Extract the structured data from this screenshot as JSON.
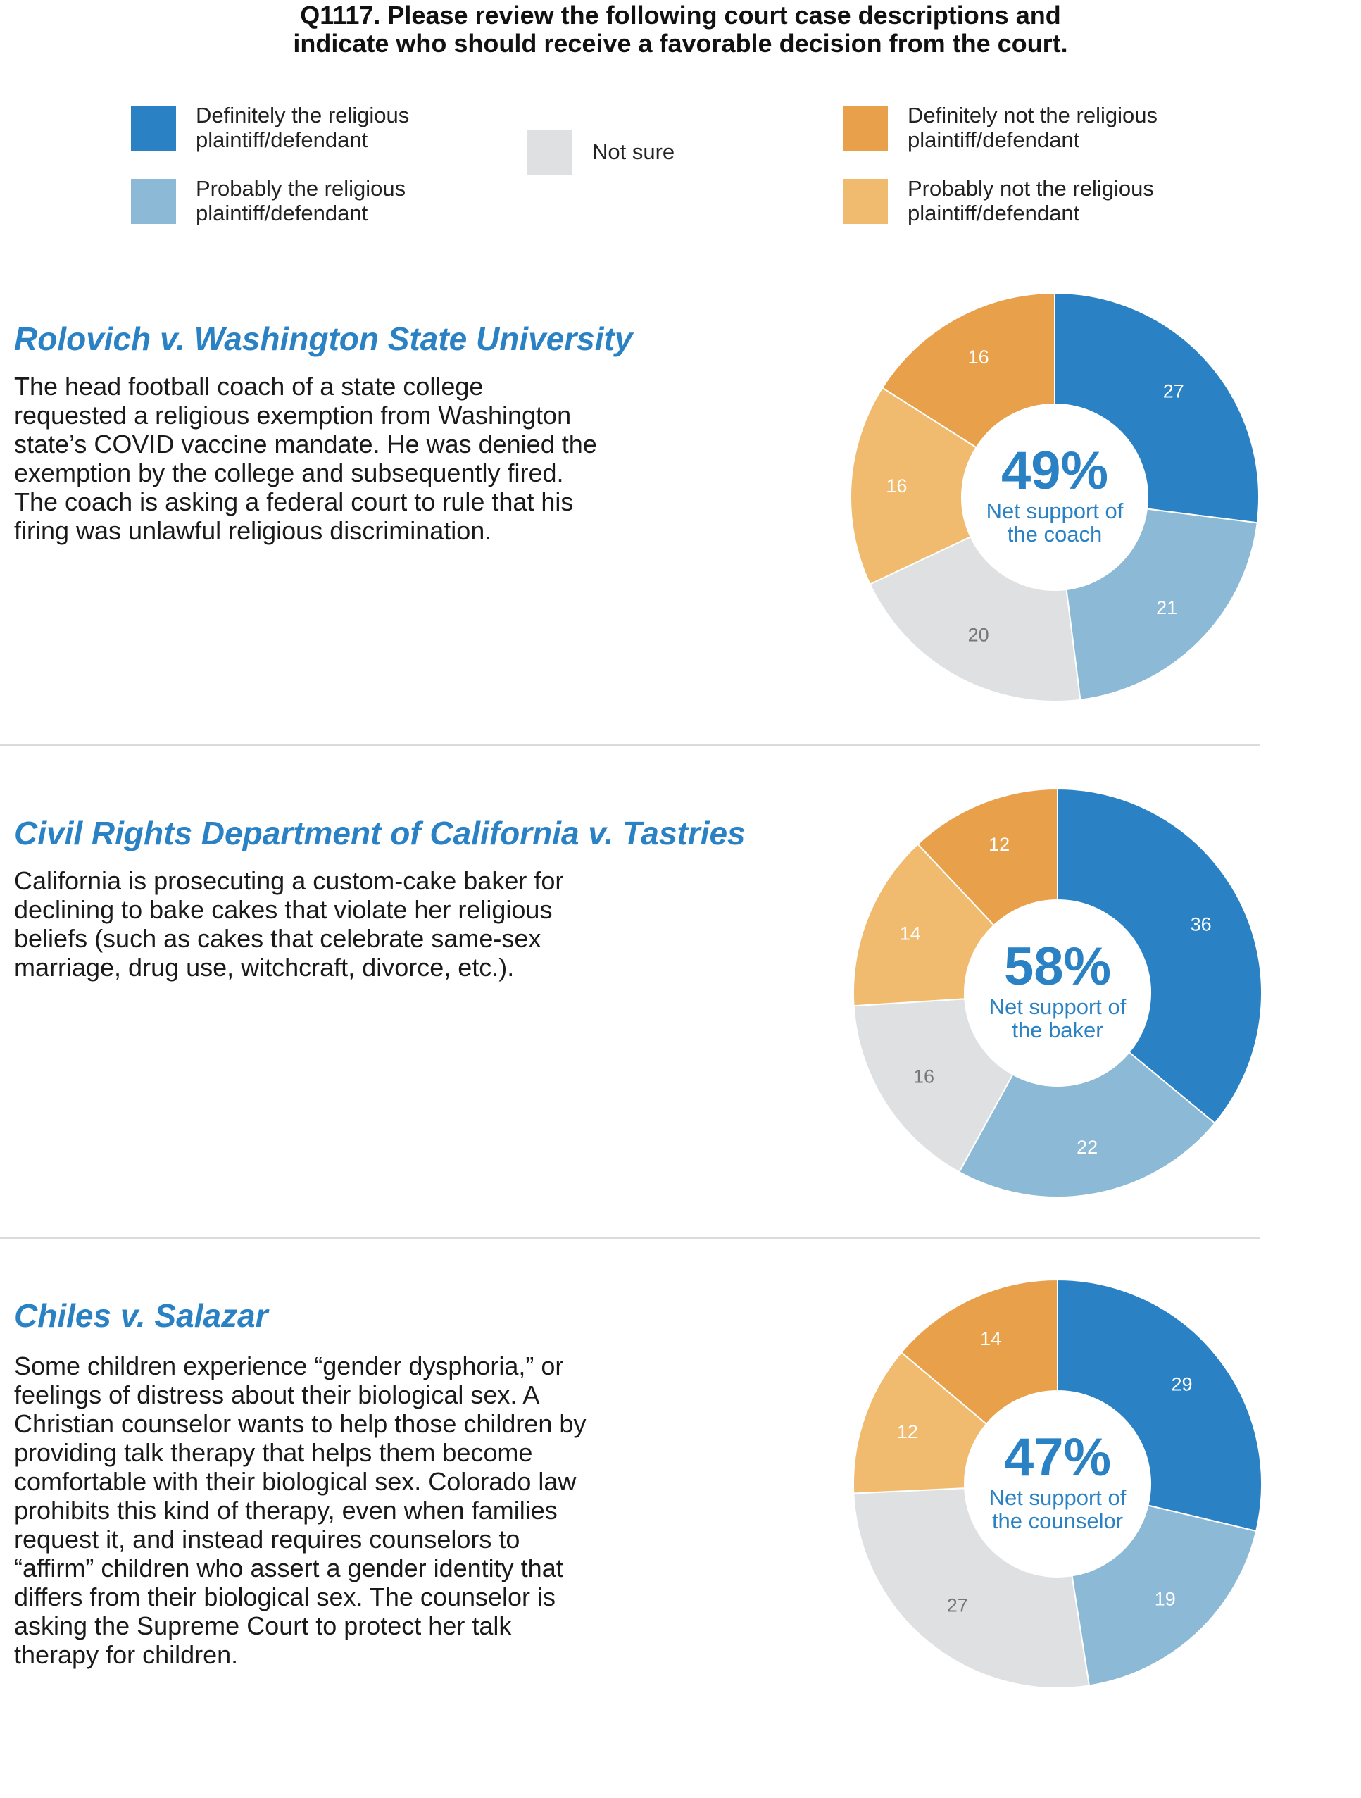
{
  "title": {
    "line1": "Q1117. Please review the following court case descriptions and",
    "line2": "indicate who should receive a favorable decision from the court."
  },
  "legend": [
    {
      "key": "def_yes",
      "line1": "Definitely the religious",
      "line2": "plaintiff/defendant",
      "color": "#2a82c4"
    },
    {
      "key": "prob_yes",
      "line1": "Probably the religious",
      "line2": "plaintiff/defendant",
      "color": "#8bb9d6"
    },
    {
      "key": "not_sure",
      "line1": "Not sure",
      "line2": "",
      "color": "#dfe0e1"
    },
    {
      "key": "def_no",
      "line1": "Definitely not the religious",
      "line2": "plaintiff/defendant",
      "color": "#e8a04a"
    },
    {
      "key": "prob_no",
      "line1": "Probably not the religious",
      "line2": "plaintiff/defendant",
      "color": "#f0bb6e"
    }
  ],
  "sections": [
    {
      "title": "Rolovich v. Washington State University",
      "text": [
        "The head football coach of a state college",
        "requested a religious exemption from Washington",
        "state’s COVID vaccine mandate. He was denied the",
        "exemption by the college and subsequently fired.",
        "The coach is asking a federal court to rule that his",
        "firing was unlawful religious discrimination."
      ]
    },
    {
      "title": "Civil Rights Department of California v. Tastries",
      "text": [
        "California is prosecuting a custom-cake baker for",
        "declining to bake cakes that violate her religious",
        "beliefs (such as cakes that celebrate same-sex",
        "marriage, drug use, witchcraft, divorce, etc.)."
      ]
    },
    {
      "title": "Chiles v. Salazar",
      "text": [
        "Some children experience “gender dysphoria,” or",
        "feelings of distress about their biological sex. A",
        "Christian counselor wants to help those children by",
        "providing talk therapy that helps them become",
        "comfortable with their biological sex. Colorado law",
        "prohibits this kind of therapy, even when families",
        "request it, and instead requires counselors to",
        "“affirm” children who assert a gender identity that",
        "differs from their biological sex. The counselor is",
        "asking the Supreme Court to protect her talk",
        "therapy for children."
      ]
    }
  ],
  "chart_data": [
    {
      "type": "pie",
      "categories": [
        "Definitely the religious plaintiff/defendant",
        "Probably the religious plaintiff/defendant",
        "Not sure",
        "Probably not the religious plaintiff/defendant",
        "Definitely not the religious plaintiff/defendant"
      ],
      "values": [
        27,
        21,
        20,
        16,
        16
      ],
      "colors": [
        "#2a82c4",
        "#8bb9d6",
        "#dfe0e1",
        "#f0bb6e",
        "#e8a04a"
      ],
      "label_colors": [
        "#ffffff",
        "#ffffff",
        "#777777",
        "#ffffff",
        "#ffffff"
      ],
      "center_value": "49%",
      "center_line1": "Net support of",
      "center_line2": "the coach"
    },
    {
      "type": "pie",
      "categories": [
        "Definitely the religious plaintiff/defendant",
        "Probably the religious plaintiff/defendant",
        "Not sure",
        "Probably not the religious plaintiff/defendant",
        "Definitely not the religious plaintiff/defendant"
      ],
      "values": [
        36,
        22,
        16,
        14,
        12
      ],
      "colors": [
        "#2a82c4",
        "#8bb9d6",
        "#dfe0e1",
        "#f0bb6e",
        "#e8a04a"
      ],
      "label_colors": [
        "#ffffff",
        "#ffffff",
        "#777777",
        "#ffffff",
        "#ffffff"
      ],
      "center_value": "58%",
      "center_line1": "Net support of",
      "center_line2": "the baker"
    },
    {
      "type": "pie",
      "categories": [
        "Definitely the religious plaintiff/defendant",
        "Probably the religious plaintiff/defendant",
        "Not sure",
        "Probably not the religious plaintiff/defendant",
        "Definitely not the religious plaintiff/defendant"
      ],
      "values": [
        29,
        19,
        27,
        12,
        14
      ],
      "colors": [
        "#2a82c4",
        "#8bb9d6",
        "#dfe0e1",
        "#f0bb6e",
        "#e8a04a"
      ],
      "label_colors": [
        "#ffffff",
        "#ffffff",
        "#777777",
        "#ffffff",
        "#ffffff"
      ],
      "center_value": "47%",
      "center_line1": "Net support of",
      "center_line2": "the counselor"
    }
  ]
}
